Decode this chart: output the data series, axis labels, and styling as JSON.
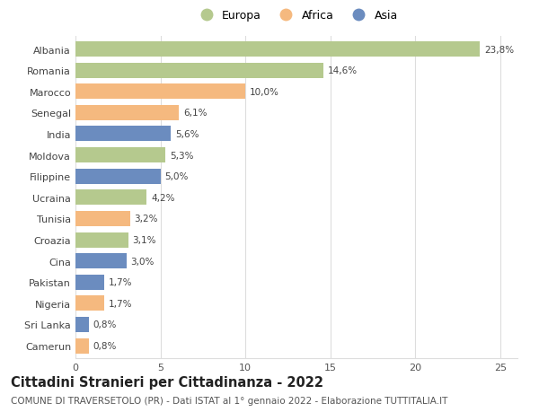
{
  "categories": [
    "Albania",
    "Romania",
    "Marocco",
    "Senegal",
    "India",
    "Moldova",
    "Filippine",
    "Ucraina",
    "Tunisia",
    "Croazia",
    "Cina",
    "Pakistan",
    "Nigeria",
    "Sri Lanka",
    "Camerun"
  ],
  "values": [
    23.8,
    14.6,
    10.0,
    6.1,
    5.6,
    5.3,
    5.0,
    4.2,
    3.2,
    3.1,
    3.0,
    1.7,
    1.7,
    0.8,
    0.8
  ],
  "labels": [
    "23,8%",
    "14,6%",
    "10,0%",
    "6,1%",
    "5,6%",
    "5,3%",
    "5,0%",
    "4,2%",
    "3,2%",
    "3,1%",
    "3,0%",
    "1,7%",
    "1,7%",
    "0,8%",
    "0,8%"
  ],
  "continents": [
    "Europa",
    "Europa",
    "Africa",
    "Africa",
    "Asia",
    "Europa",
    "Asia",
    "Europa",
    "Africa",
    "Europa",
    "Asia",
    "Asia",
    "Africa",
    "Asia",
    "Africa"
  ],
  "colors": {
    "Europa": "#b5c98e",
    "Africa": "#f5b97f",
    "Asia": "#6b8cbf"
  },
  "legend_labels": [
    "Europa",
    "Africa",
    "Asia"
  ],
  "xlim": [
    0,
    26
  ],
  "xticks": [
    0,
    5,
    10,
    15,
    20,
    25
  ],
  "title": "Cittadini Stranieri per Cittadinanza - 2022",
  "subtitle": "COMUNE DI TRAVERSETOLO (PR) - Dati ISTAT al 1° gennaio 2022 - Elaborazione TUTTITALIA.IT",
  "background_color": "#ffffff",
  "grid_color": "#dddddd",
  "bar_height": 0.72,
  "title_fontsize": 10.5,
  "subtitle_fontsize": 7.5,
  "label_fontsize": 7.5,
  "tick_fontsize": 8,
  "legend_fontsize": 9
}
